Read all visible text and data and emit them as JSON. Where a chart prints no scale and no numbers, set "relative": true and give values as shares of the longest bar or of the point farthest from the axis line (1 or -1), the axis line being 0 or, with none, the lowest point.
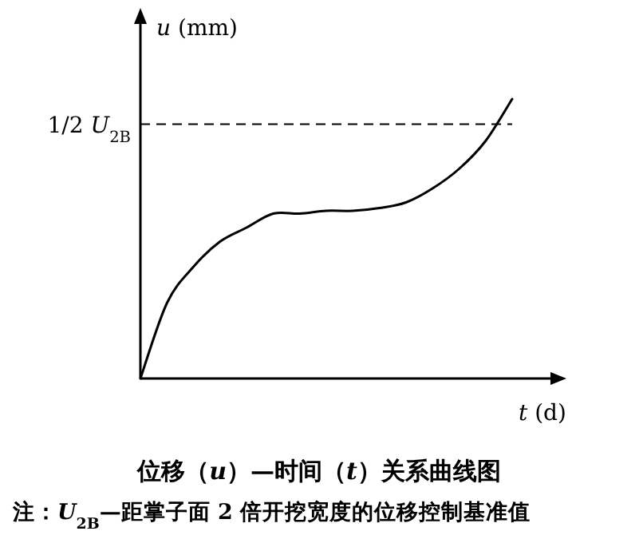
{
  "chart_data": {
    "type": "line",
    "relative": true,
    "title": "位移（*u*）—时间（*t*）关系曲线图",
    "xlabel": "*t* (d)",
    "ylabel": "*u* (mm)",
    "annotations": [
      "注：*U*$_{2B}$—距掌子面 2 倍开挖宽度的位移控制基准值"
    ],
    "categories": [
      null,
      null,
      null,
      null,
      null,
      null,
      null,
      null,
      null,
      null,
      null,
      null,
      null,
      null,
      null
    ],
    "series": [
      {
        "color": "#000000",
        "values": [
          0,
          0.27,
          0.4,
          0.49,
          0.54,
          0.59,
          0.59,
          0.6,
          0.6,
          0.61,
          0.63,
          0.68,
          0.75,
          0.85,
          1
        ]
      }
    ],
    "ref_lines": [
      {
        "axis": "y",
        "value": 0.91,
        "label": "1/2 *U*$_{2B}$",
        "line_style": "dashed",
        "color": "#000000"
      }
    ],
    "grid": false
  }
}
